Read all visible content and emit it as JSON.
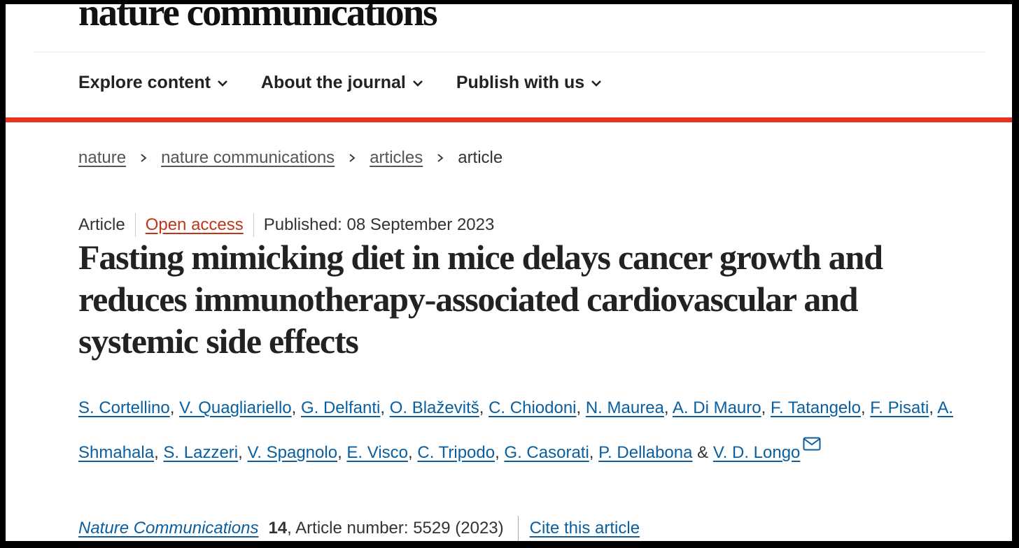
{
  "header": {
    "logo": "nature communications",
    "nav": [
      {
        "label": "Explore content"
      },
      {
        "label": "About the journal"
      },
      {
        "label": "Publish with us"
      }
    ],
    "accent_color": "#e8311f"
  },
  "breadcrumb": [
    "nature",
    "nature communications",
    "articles",
    "article"
  ],
  "meta": {
    "type": "Article",
    "access": "Open access",
    "published": "Published: 08 September 2023"
  },
  "title": "Fasting mimicking diet in mice delays cancer growth and reduces immunotherapy-associated cardiovascular and systemic side effects",
  "authors": [
    "S. Cortellino",
    "V. Quagliariello",
    "G. Delfanti",
    "O. Blaževitš",
    "C. Chiodoni",
    "N. Maurea",
    "A. Di Mauro",
    "F. Tatangelo",
    "F. Pisati",
    "A. Shmahala",
    "S. Lazzeri",
    "V. Spagnolo",
    "E. Visco",
    "C. Tripodo",
    "G. Casorati",
    "P. Dellabona",
    "V. D. Longo"
  ],
  "authors_conjunction": "&",
  "citation": {
    "journal": "Nature Communications",
    "volume": "14",
    "article_number": ", Article number: 5529 (2023)",
    "cite_label": "Cite this article"
  }
}
